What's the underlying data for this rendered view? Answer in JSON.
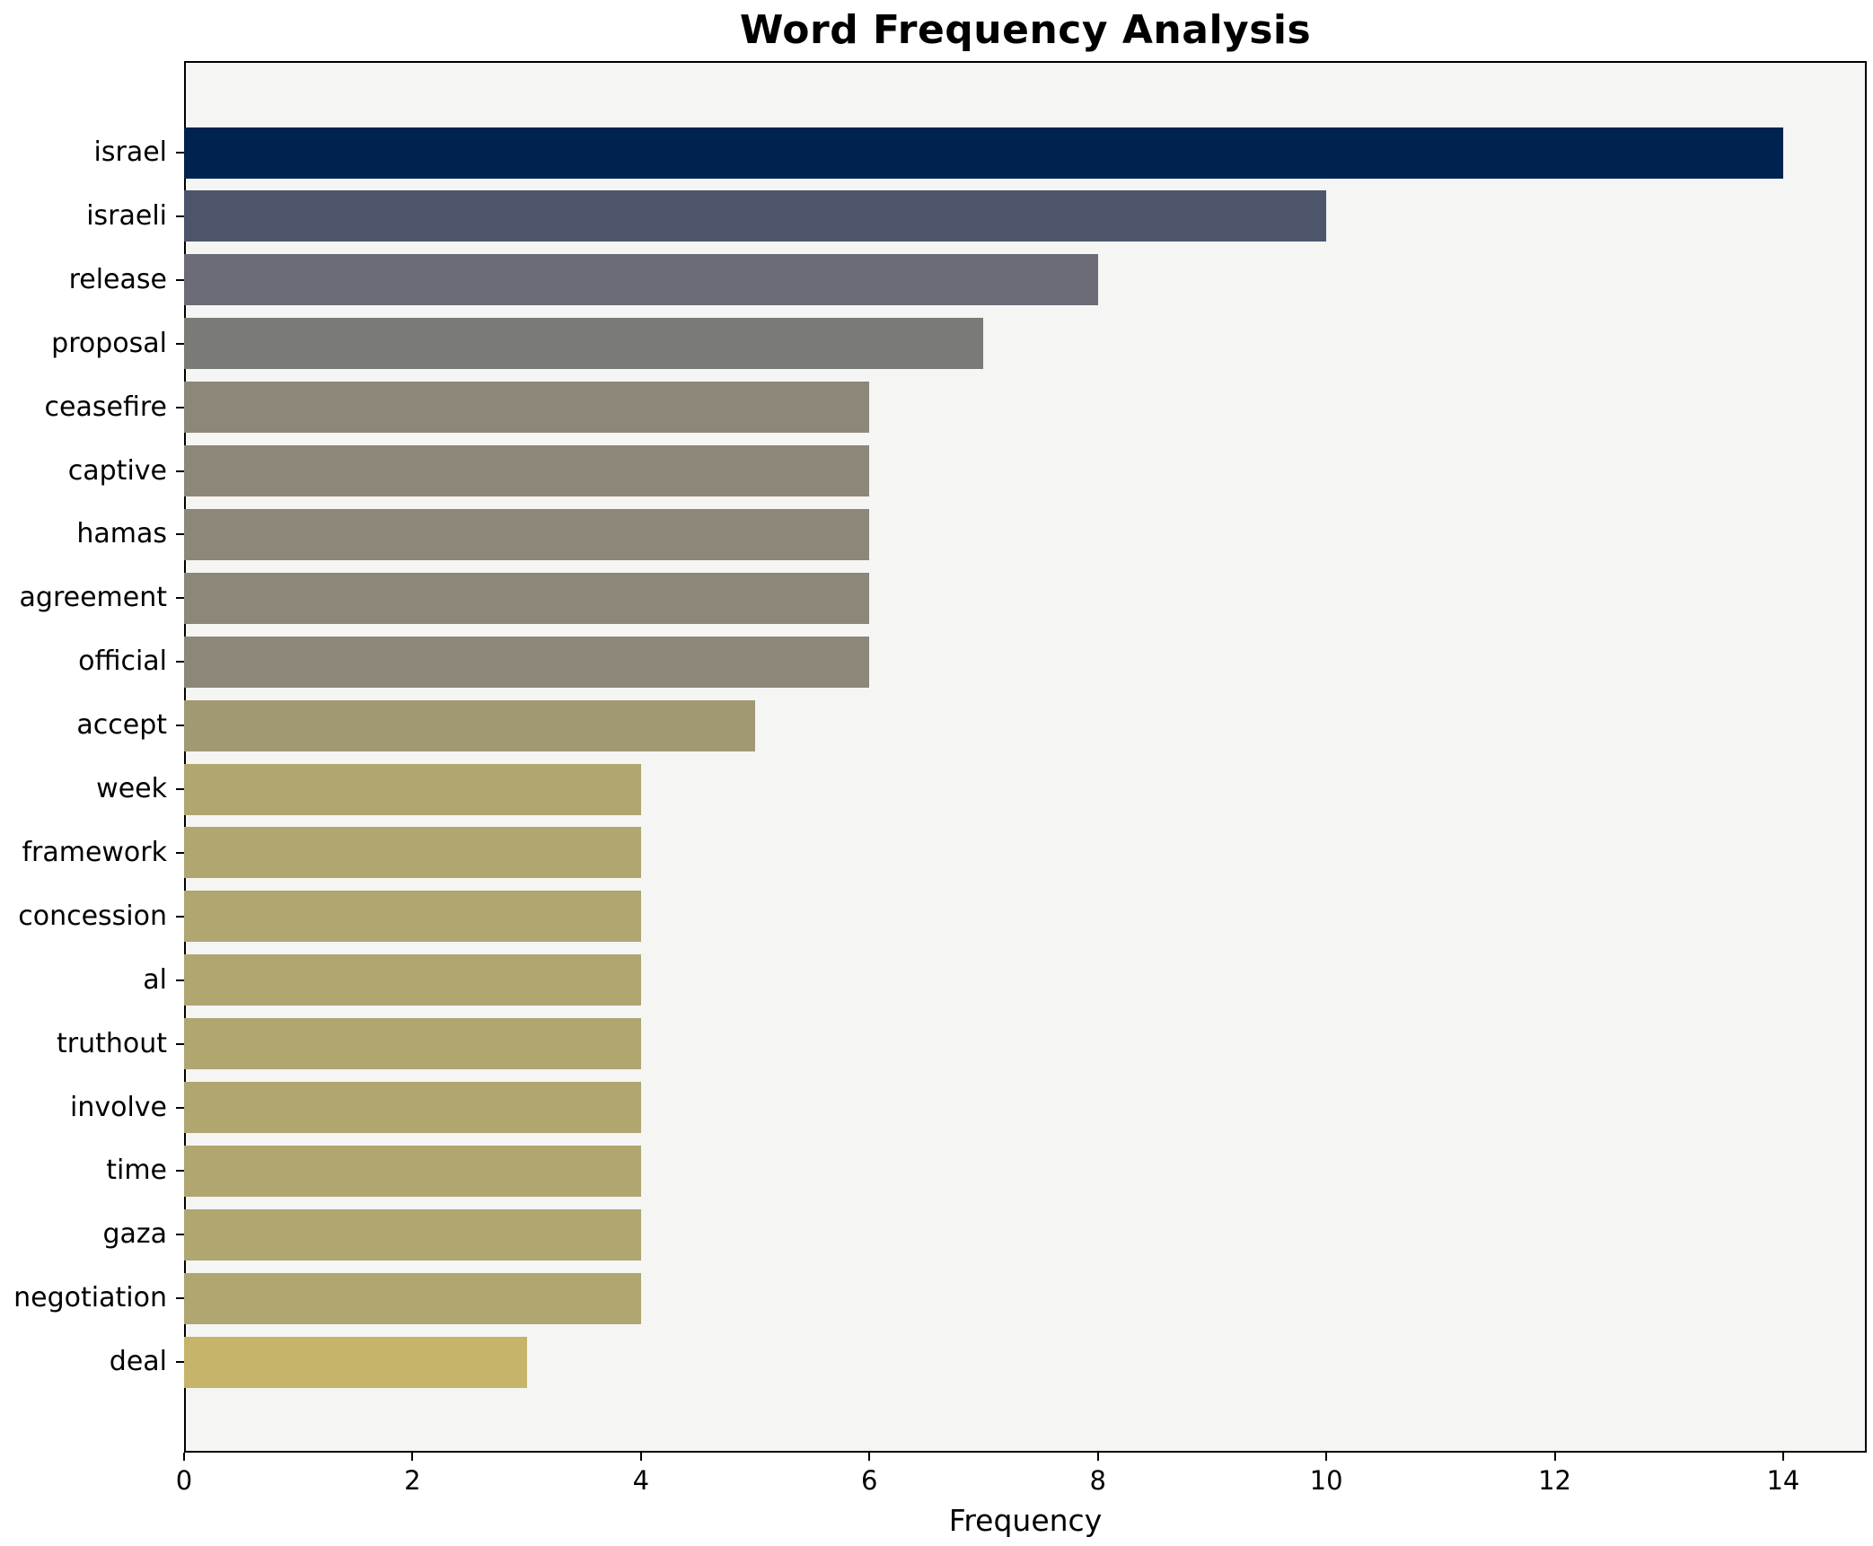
{
  "chart_data": {
    "type": "bar",
    "orientation": "horizontal",
    "title": "Word Frequency Analysis",
    "xlabel": "Frequency",
    "ylabel": "",
    "categories": [
      "israel",
      "israeli",
      "release",
      "proposal",
      "ceasefire",
      "captive",
      "hamas",
      "agreement",
      "official",
      "accept",
      "week",
      "framework",
      "concession",
      "al",
      "truthout",
      "involve",
      "time",
      "gaza",
      "negotiation",
      "deal"
    ],
    "values": [
      14,
      10,
      8,
      7,
      6,
      6,
      6,
      6,
      6,
      5,
      4,
      4,
      4,
      4,
      4,
      4,
      4,
      4,
      4,
      3
    ],
    "bar_colors": [
      "#00224e",
      "#4c556c",
      "#6b6c75",
      "#7a7a76",
      "#8d8779",
      "#8d8779",
      "#8d8779",
      "#8d8779",
      "#8d8779",
      "#a09973",
      "#b0a670",
      "#b0a670",
      "#b0a670",
      "#b0a670",
      "#b0a670",
      "#b0a670",
      "#b0a670",
      "#b0a670",
      "#b0a670",
      "#c5b469"
    ],
    "x_ticks": [
      0,
      2,
      4,
      6,
      8,
      10,
      12,
      14
    ],
    "xlim": [
      0,
      14.7
    ],
    "grid": false,
    "legend": null,
    "plot_background": "#f5f5f4",
    "figure_background": "#ffffff",
    "spine_color": "#000000"
  }
}
